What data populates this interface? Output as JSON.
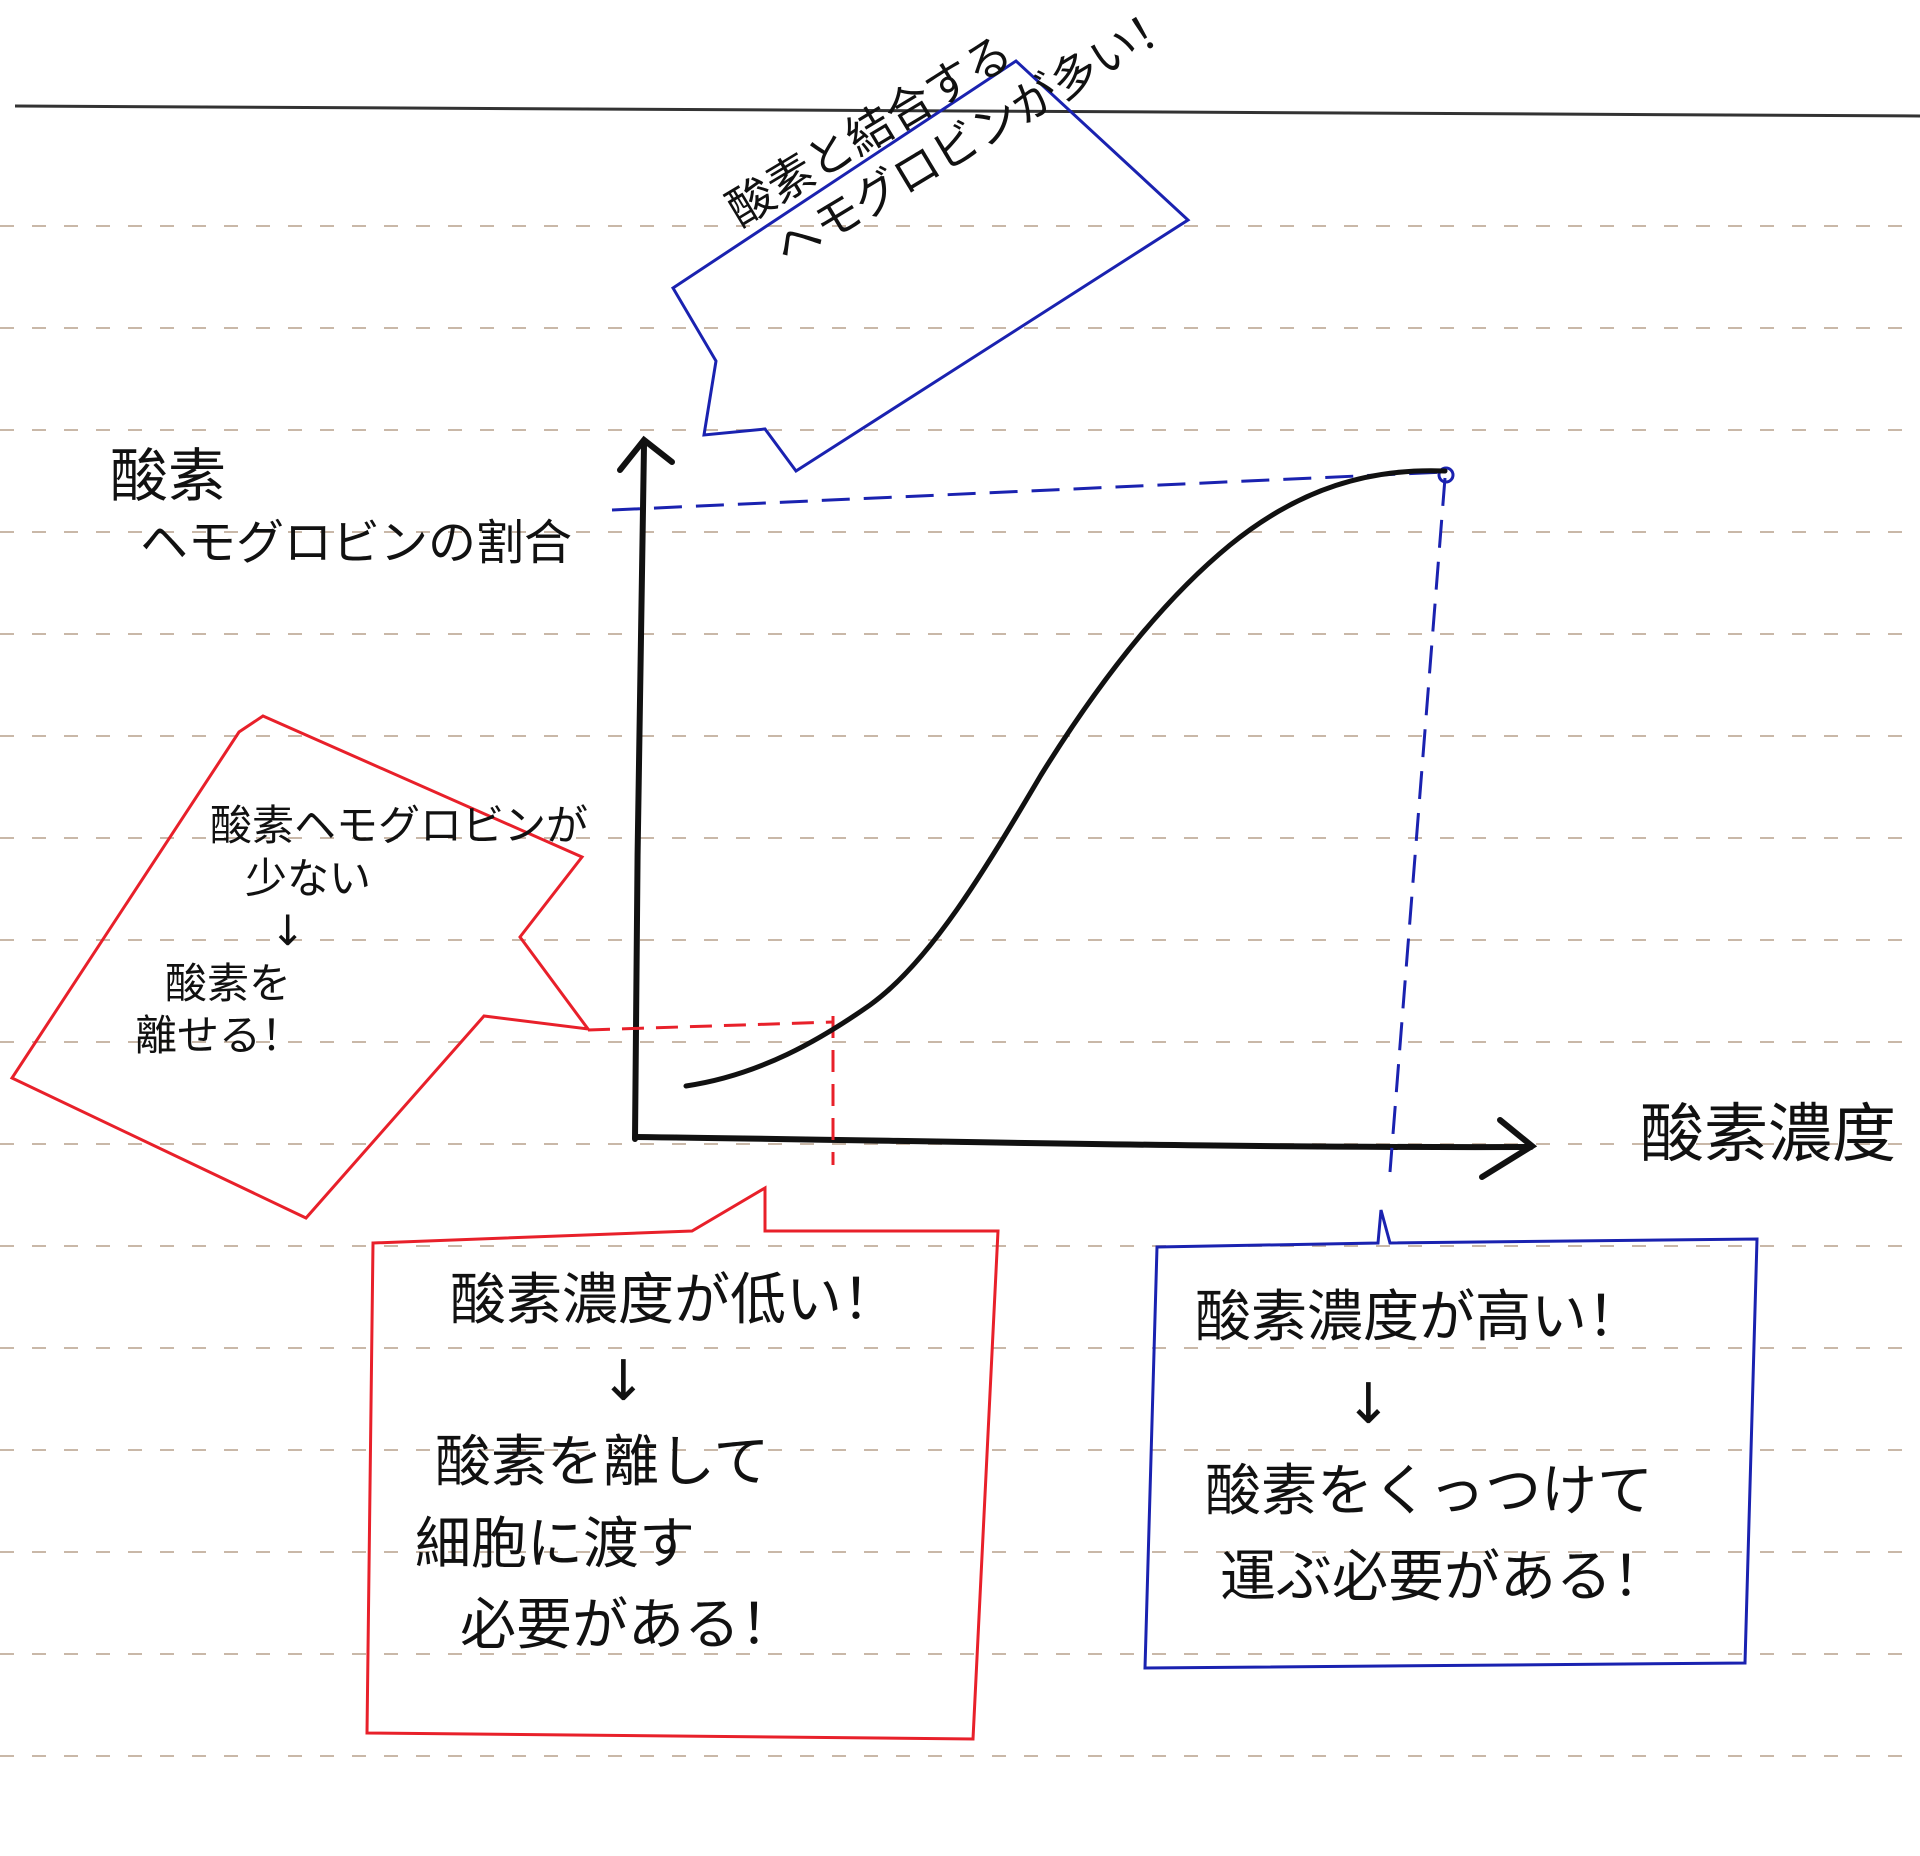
{
  "colors": {
    "ink": "#111111",
    "red": "#e8202a",
    "blue": "#1a22b0",
    "rule": "#c9b8a8"
  },
  "axes": {
    "y_label": [
      "酸素",
      "ヘモグロビンの割合"
    ],
    "x_label": "酸素濃度"
  },
  "bubbles": {
    "top_blue": [
      "酸素と結合する",
      "ヘモグロビンが多い！"
    ],
    "left_red": [
      "酸素ヘモグロビンが",
      "少ない",
      "↓",
      "酸素を",
      "離せる！"
    ],
    "bottom_red": [
      "酸素濃度が低い！",
      "↓",
      "酸素を離して",
      "細胞に渡す",
      "必要がある！"
    ],
    "bottom_blue": [
      "酸素濃度が高い！",
      "↓",
      "酸素をくっつけて",
      "運ぶ必要がある！"
    ]
  }
}
